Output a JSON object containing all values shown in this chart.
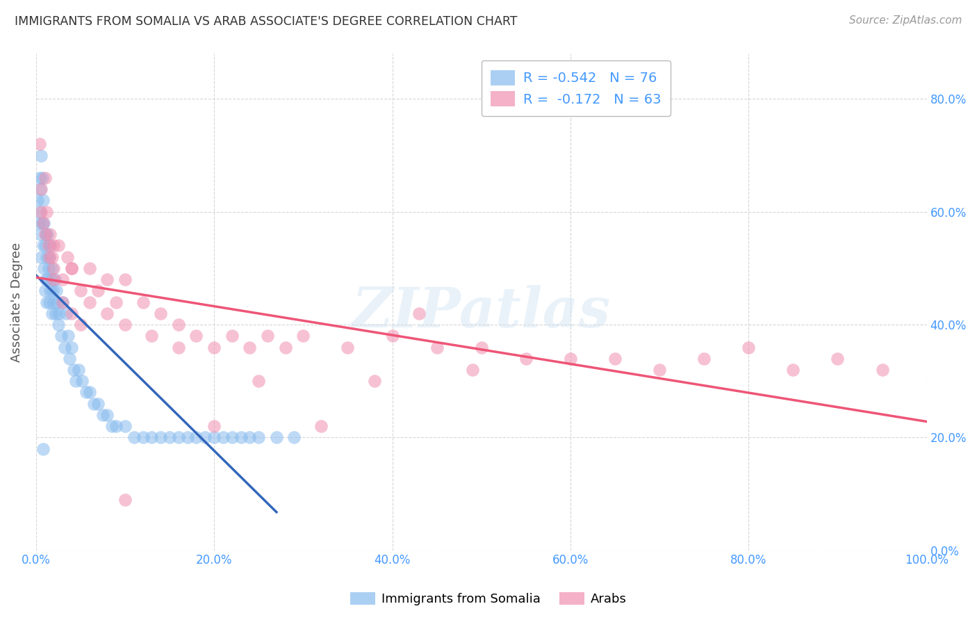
{
  "title": "IMMIGRANTS FROM SOMALIA VS ARAB ASSOCIATE'S DEGREE CORRELATION CHART",
  "source": "Source: ZipAtlas.com",
  "ylabel": "Associate's Degree",
  "right_ytick_labels": [
    "0.0%",
    "20.0%",
    "40.0%",
    "60.0%",
    "80.0%"
  ],
  "right_ytick_values": [
    0.0,
    0.2,
    0.4,
    0.6,
    0.8
  ],
  "xlim": [
    0.0,
    1.0
  ],
  "ylim": [
    0.0,
    0.88
  ],
  "xtick_labels": [
    "0.0%",
    "20.0%",
    "40.0%",
    "60.0%",
    "80.0%",
    "100.0%"
  ],
  "xtick_values": [
    0.0,
    0.2,
    0.4,
    0.6,
    0.8,
    1.0
  ],
  "legend_label_blue": "Immigrants from Somalia",
  "legend_label_pink": "Arabs",
  "legend_R_blue": "-0.542",
  "legend_N_blue": "76",
  "legend_R_pink": "-0.172",
  "legend_N_pink": "63",
  "watermark": "ZIPatlas",
  "background_color": "#ffffff",
  "grid_color": "#cccccc",
  "title_color": "#333333",
  "source_color": "#999999",
  "tick_label_color": "#4499ff",
  "ylabel_color": "#555555",
  "scatter_blue_color": "#88bbee",
  "scatter_pink_color": "#f090b0",
  "line_blue_color": "#3366bb",
  "line_pink_color": "#ee5577",
  "legend_text_color": "#4499ff",
  "legend_r_color": "#4499ff",
  "somalia_points_x": [
    0.002,
    0.003,
    0.004,
    0.004,
    0.005,
    0.005,
    0.006,
    0.006,
    0.007,
    0.007,
    0.008,
    0.008,
    0.009,
    0.009,
    0.01,
    0.01,
    0.011,
    0.011,
    0.012,
    0.012,
    0.013,
    0.013,
    0.014,
    0.015,
    0.015,
    0.016,
    0.016,
    0.017,
    0.018,
    0.018,
    0.019,
    0.02,
    0.021,
    0.022,
    0.023,
    0.024,
    0.025,
    0.026,
    0.028,
    0.03,
    0.032,
    0.034,
    0.036,
    0.038,
    0.04,
    0.042,
    0.045,
    0.048,
    0.052,
    0.056,
    0.06,
    0.065,
    0.07,
    0.075,
    0.08,
    0.085,
    0.09,
    0.1,
    0.11,
    0.12,
    0.13,
    0.14,
    0.15,
    0.16,
    0.17,
    0.18,
    0.19,
    0.2,
    0.21,
    0.22,
    0.23,
    0.24,
    0.25,
    0.27,
    0.29,
    0.008
  ],
  "somalia_points_y": [
    0.62,
    0.58,
    0.66,
    0.6,
    0.56,
    0.64,
    0.52,
    0.7,
    0.58,
    0.66,
    0.54,
    0.62,
    0.5,
    0.58,
    0.46,
    0.54,
    0.48,
    0.56,
    0.44,
    0.52,
    0.48,
    0.56,
    0.5,
    0.44,
    0.52,
    0.46,
    0.54,
    0.48,
    0.42,
    0.5,
    0.46,
    0.44,
    0.48,
    0.42,
    0.46,
    0.44,
    0.4,
    0.42,
    0.38,
    0.44,
    0.36,
    0.42,
    0.38,
    0.34,
    0.36,
    0.32,
    0.3,
    0.32,
    0.3,
    0.28,
    0.28,
    0.26,
    0.26,
    0.24,
    0.24,
    0.22,
    0.22,
    0.22,
    0.2,
    0.2,
    0.2,
    0.2,
    0.2,
    0.2,
    0.2,
    0.2,
    0.2,
    0.2,
    0.2,
    0.2,
    0.2,
    0.2,
    0.2,
    0.2,
    0.2,
    0.18
  ],
  "arab_points_x": [
    0.004,
    0.006,
    0.008,
    0.01,
    0.012,
    0.014,
    0.016,
    0.018,
    0.02,
    0.025,
    0.03,
    0.035,
    0.04,
    0.05,
    0.06,
    0.07,
    0.08,
    0.09,
    0.1,
    0.12,
    0.14,
    0.16,
    0.18,
    0.2,
    0.22,
    0.24,
    0.26,
    0.28,
    0.3,
    0.35,
    0.4,
    0.45,
    0.5,
    0.55,
    0.6,
    0.65,
    0.7,
    0.75,
    0.8,
    0.85,
    0.9,
    0.95,
    0.006,
    0.01,
    0.015,
    0.02,
    0.03,
    0.04,
    0.05,
    0.06,
    0.08,
    0.1,
    0.13,
    0.16,
    0.2,
    0.25,
    0.32,
    0.38,
    0.43,
    0.49,
    0.02,
    0.04,
    0.1
  ],
  "arab_points_y": [
    0.72,
    0.64,
    0.58,
    0.66,
    0.6,
    0.54,
    0.56,
    0.52,
    0.5,
    0.54,
    0.48,
    0.52,
    0.5,
    0.46,
    0.5,
    0.46,
    0.48,
    0.44,
    0.48,
    0.44,
    0.42,
    0.4,
    0.38,
    0.36,
    0.38,
    0.36,
    0.38,
    0.36,
    0.38,
    0.36,
    0.38,
    0.36,
    0.36,
    0.34,
    0.34,
    0.34,
    0.32,
    0.34,
    0.36,
    0.32,
    0.34,
    0.32,
    0.6,
    0.56,
    0.52,
    0.48,
    0.44,
    0.42,
    0.4,
    0.44,
    0.42,
    0.4,
    0.38,
    0.36,
    0.22,
    0.3,
    0.22,
    0.3,
    0.42,
    0.32,
    0.54,
    0.5,
    0.09
  ]
}
